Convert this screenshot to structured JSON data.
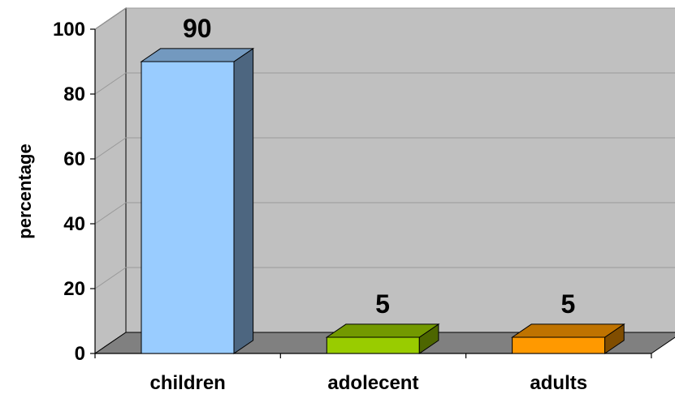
{
  "chart_data": {
    "type": "bar",
    "style": "3d",
    "title": "",
    "xlabel": "",
    "ylabel": "percentage",
    "categories": [
      "children",
      "adolecent",
      "adults"
    ],
    "values": [
      90,
      5,
      5
    ],
    "data_labels": [
      "90",
      "5",
      "5"
    ],
    "ylim": [
      0,
      100
    ],
    "yticks": [
      0,
      20,
      40,
      60,
      80,
      100
    ],
    "ytick_labels": [
      "0",
      "20",
      "40",
      "60",
      "80",
      "100"
    ],
    "grid": true,
    "legend": "none",
    "colors": {
      "wall": "#c0c0c0",
      "floor": "#808080",
      "gridline": "#9a9a9a",
      "bars": [
        {
          "front": "#99ccff",
          "side": "#4d6680",
          "top": "#7399bf"
        },
        {
          "front": "#99cc00",
          "side": "#4d6600",
          "top": "#739900"
        },
        {
          "front": "#ff9900",
          "side": "#804d00",
          "top": "#bf7300"
        }
      ]
    }
  }
}
